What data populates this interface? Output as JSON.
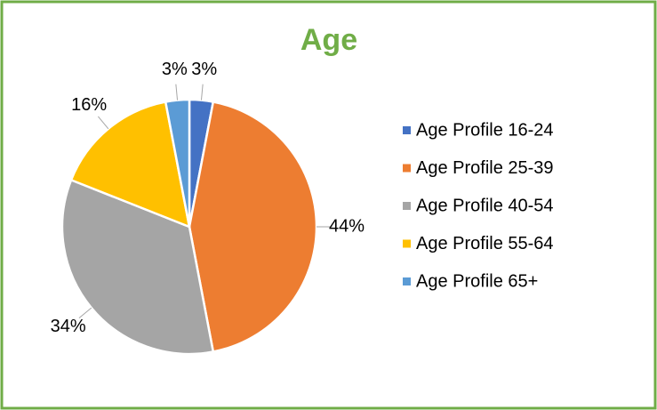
{
  "chart_data": {
    "type": "pie",
    "title": "Age",
    "categories": [
      "Age Profile 16-24",
      "Age Profile 25-39",
      "Age Profile 40-54",
      "Age Profile 55-64",
      "Age Profile 65+"
    ],
    "values": [
      3,
      44,
      34,
      16,
      3
    ],
    "value_labels": [
      "3%",
      "44%",
      "34%",
      "16%",
      "3%"
    ],
    "colors": [
      "#4472c4",
      "#ed7d31",
      "#a5a5a5",
      "#ffc000",
      "#5b9bd5"
    ],
    "legend": "right"
  }
}
